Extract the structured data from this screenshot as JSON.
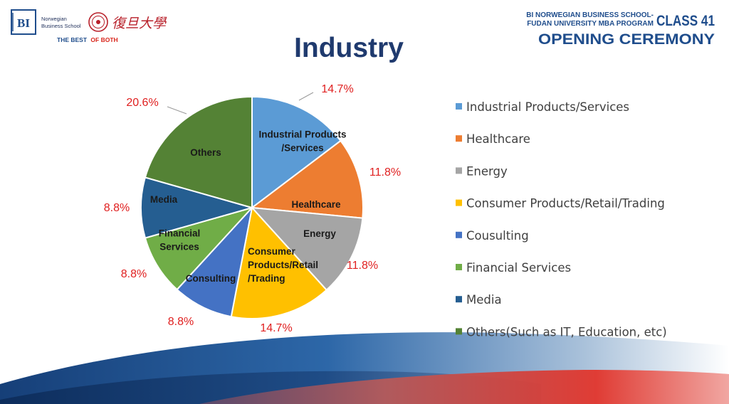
{
  "header": {
    "left": {
      "bi_badge": "BI",
      "bi_name_line1": "Norwegian",
      "bi_name_line2": "Business School",
      "fudan_chinese": "復旦大學",
      "tagline_part1": "THE BEST",
      "tagline_part2": "OF BOTH"
    },
    "right": {
      "line1": "BI NORWEGIAN BUSINESS SCHOOL-",
      "line2": "FUDAN UNIVERSITY MBA PROGRAM",
      "class_label": "CLASS 41",
      "ceremony": "OPENING CEREMONY"
    }
  },
  "slide_title": "Industry",
  "colors": {
    "title": "#1f3a6e",
    "pct_labels": "#e02020",
    "legend_text": "#404040",
    "tagline_red": "#d9261c",
    "header_blue": "#1f4d8c"
  },
  "chart_data": {
    "type": "pie",
    "start": "12 o'clock, clockwise",
    "slices": [
      {
        "name": "Industrial Products/Services",
        "slice_label": [
          "Industrial Products",
          "/Services"
        ],
        "value": 14.7,
        "pct_label": "14.7%",
        "color": "#5b9bd5"
      },
      {
        "name": "Healthcare",
        "slice_label": [
          "Healthcare"
        ],
        "value": 11.8,
        "pct_label": "11.8%",
        "color": "#ed7d31"
      },
      {
        "name": "Energy",
        "slice_label": [
          "Energy"
        ],
        "value": 11.8,
        "pct_label": "11.8%",
        "color": "#a5a5a5"
      },
      {
        "name": "Consumer Products/Retail/Trading",
        "slice_label": [
          "Consumer",
          "Products/Retail",
          "/Trading"
        ],
        "value": 14.7,
        "pct_label": "14.7%",
        "color": "#ffc000"
      },
      {
        "name": "Cousulting",
        "slice_label": [
          "Consulting"
        ],
        "value": 8.8,
        "pct_label": "8.8%",
        "color": "#4472c4"
      },
      {
        "name": "Financial Services",
        "slice_label": [
          "Financial",
          "Services"
        ],
        "value": 8.8,
        "pct_label": "8.8%",
        "color": "#70ad47"
      },
      {
        "name": "Media",
        "slice_label": [
          "Media"
        ],
        "value": 8.8,
        "pct_label": "8.8%",
        "color": "#255e91"
      },
      {
        "name": "Others(Such as IT, Education, etc)",
        "slice_label": [
          "Others"
        ],
        "value": 20.6,
        "pct_label": "20.6%",
        "color": "#548235"
      }
    ],
    "legend": {
      "placement": "right",
      "entries": [
        "Industrial Products/Services",
        "Healthcare",
        "Energy",
        "Consumer Products/Retail/Trading",
        "Cousulting",
        "Financial Services",
        "Media",
        "Others(Such as IT, Education, etc)"
      ]
    }
  }
}
